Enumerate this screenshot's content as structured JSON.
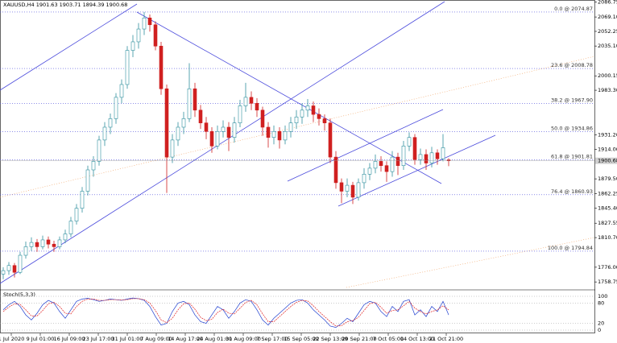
{
  "chart_data": {
    "type": "candlestick",
    "title": "XAUUSD,H4  1901.63 1903.71 1894.39 1900.68",
    "colors": {
      "up": "#2f8f9d",
      "down": "#d02020"
    },
    "ylim": [
      1752.3,
      2089.0
    ],
    "yticks": [
      2086.75,
      {
        "value": 2069.1,
        "label": "2069.10"
      },
      2052.25,
      {
        "value": 2035.1,
        "label": "2035.10"
      },
      {
        "value": 2000.15,
        "label": "2000.15"
      },
      {
        "value": 1983.3,
        "label": "1983.30"
      },
      {
        "value": 1931.2,
        "label": "1931.20"
      },
      {
        "value": 1914.0,
        "label": "1914.00"
      },
      {
        "value": 1879.5,
        "label": "1879.50"
      },
      1862.25,
      {
        "value": 1845.4,
        "label": "1845.40"
      },
      1827.55,
      {
        "value": 1810.7,
        "label": "1810.70"
      },
      {
        "value": 1776.0,
        "label": "1776.00"
      },
      1758.75
    ],
    "fib_levels": [
      {
        "value": 2074.87,
        "label": "0.0 @ 2074.87"
      },
      {
        "value": 2008.78,
        "label": "23.6 @ 2008.78"
      },
      {
        "value": 1967.9,
        "label": "38.2 @ 1967.90"
      },
      {
        "value": 1934.86,
        "label": "50.0 @ 1934.86"
      },
      {
        "value": 1901.81,
        "label": "61.8 @ 1901.81"
      },
      {
        "value": 1860.93,
        "label": "76.4 @ 1860.93"
      },
      {
        "value": 1794.84,
        "label": "100.0 @ 1794.84"
      }
    ],
    "current_price": 1900.68,
    "x_labels": [
      "1 Jul 2020",
      "9 Jul 01:00",
      "16 Jul 09:00",
      "23 Jul 17:00",
      "31 Jul 01:00",
      "7 Aug 09:00",
      "14 Aug 17:00",
      "24 Aug 01:00",
      "31 Aug 09:00",
      "7 Sep 17:00",
      "15 Sep 05:00",
      "22 Sep 13:00",
      "29 Sep 21:00",
      "7 Oct 05:00",
      "14 Oct 13:00",
      "21 Oct 21:00"
    ],
    "ohlc": [
      [
        1768,
        1776,
        1762,
        1772
      ],
      [
        1772,
        1782,
        1767,
        1778
      ],
      [
        1778,
        1781,
        1764,
        1770
      ],
      [
        1770,
        1794,
        1768,
        1790
      ],
      [
        1790,
        1806,
        1786,
        1800
      ],
      [
        1800,
        1811,
        1795,
        1805
      ],
      [
        1805,
        1809,
        1794,
        1800
      ],
      [
        1800,
        1813,
        1797,
        1808
      ],
      [
        1808,
        1812,
        1798,
        1803
      ],
      [
        1803,
        1807,
        1794,
        1800
      ],
      [
        1800,
        1812,
        1797,
        1808
      ],
      [
        1808,
        1820,
        1804,
        1815
      ],
      [
        1815,
        1835,
        1811,
        1830
      ],
      [
        1830,
        1850,
        1826,
        1845
      ],
      [
        1845,
        1870,
        1840,
        1865
      ],
      [
        1865,
        1895,
        1860,
        1890
      ],
      [
        1890,
        1906,
        1882,
        1900
      ],
      [
        1900,
        1930,
        1895,
        1925
      ],
      [
        1925,
        1946,
        1918,
        1940
      ],
      [
        1940,
        1956,
        1932,
        1950
      ],
      [
        1950,
        1980,
        1944,
        1975
      ],
      [
        1975,
        1996,
        1968,
        1990
      ],
      [
        1990,
        2035,
        1985,
        2030
      ],
      [
        2030,
        2048,
        2022,
        2040
      ],
      [
        2040,
        2062,
        2032,
        2055
      ],
      [
        2055,
        2075,
        2048,
        2068
      ],
      [
        2068,
        2072,
        2052,
        2060
      ],
      [
        2060,
        2064,
        2030,
        2035
      ],
      [
        2035,
        2040,
        1978,
        1985
      ],
      [
        1985,
        1990,
        1863,
        1905
      ],
      [
        1905,
        1932,
        1898,
        1925
      ],
      [
        1925,
        1946,
        1918,
        1940
      ],
      [
        1940,
        1958,
        1932,
        1950
      ],
      [
        1950,
        2015,
        1946,
        1985
      ],
      [
        1985,
        1992,
        1952,
        1960
      ],
      [
        1960,
        1966,
        1938,
        1945
      ],
      [
        1945,
        1952,
        1926,
        1935
      ],
      [
        1935,
        1940,
        1910,
        1918
      ],
      [
        1918,
        1942,
        1914,
        1935
      ],
      [
        1935,
        1948,
        1928,
        1940
      ],
      [
        1940,
        1946,
        1912,
        1928
      ],
      [
        1928,
        1952,
        1922,
        1945
      ],
      [
        1945,
        1972,
        1940,
        1965
      ],
      [
        1965,
        1992,
        1958,
        1975
      ],
      [
        1975,
        1982,
        1960,
        1968
      ],
      [
        1968,
        1974,
        1952,
        1960
      ],
      [
        1960,
        1964,
        1930,
        1940
      ],
      [
        1940,
        1946,
        1916,
        1928
      ],
      [
        1928,
        1942,
        1920,
        1935
      ],
      [
        1935,
        1940,
        1915,
        1925
      ],
      [
        1925,
        1942,
        1920,
        1935
      ],
      [
        1935,
        1952,
        1928,
        1945
      ],
      [
        1945,
        1960,
        1938,
        1952
      ],
      [
        1952,
        1968,
        1944,
        1960
      ],
      [
        1960,
        1973,
        1952,
        1965
      ],
      [
        1965,
        1970,
        1946,
        1955
      ],
      [
        1955,
        1962,
        1942,
        1950
      ],
      [
        1950,
        1955,
        1936,
        1945
      ],
      [
        1945,
        1950,
        1898,
        1905
      ],
      [
        1905,
        1912,
        1868,
        1875
      ],
      [
        1875,
        1880,
        1851,
        1865
      ],
      [
        1865,
        1880,
        1858,
        1872
      ],
      [
        1872,
        1876,
        1850,
        1858
      ],
      [
        1858,
        1880,
        1854,
        1875
      ],
      [
        1875,
        1892,
        1868,
        1885
      ],
      [
        1885,
        1898,
        1878,
        1892
      ],
      [
        1892,
        1908,
        1886,
        1900
      ],
      [
        1900,
        1906,
        1888,
        1895
      ],
      [
        1895,
        1900,
        1876,
        1888
      ],
      [
        1888,
        1912,
        1882,
        1905
      ],
      [
        1905,
        1910,
        1884,
        1895
      ],
      [
        1895,
        1924,
        1890,
        1918
      ],
      [
        1918,
        1934,
        1912,
        1928
      ],
      [
        1928,
        1932,
        1896,
        1902
      ],
      [
        1902,
        1915,
        1896,
        1908
      ],
      [
        1908,
        1914,
        1890,
        1898
      ],
      [
        1898,
        1917,
        1893,
        1910
      ],
      [
        1910,
        1914,
        1896,
        1903
      ],
      [
        1903,
        1932,
        1900,
        1916
      ],
      [
        1901.63,
        1903.71,
        1894.39,
        1900.68
      ]
    ],
    "indicator": {
      "type": "line",
      "name": "Stoch(5,3,3)",
      "ylim": [
        0,
        100
      ],
      "yticks": [
        100,
        80,
        20,
        0
      ],
      "series": [
        {
          "color": "#2040d0",
          "values": [
            60,
            75,
            85,
            70,
            45,
            30,
            50,
            75,
            88,
            80,
            55,
            35,
            60,
            85,
            92,
            94,
            90,
            85,
            88,
            92,
            90,
            88,
            92,
            95,
            93,
            88,
            70,
            40,
            15,
            20,
            55,
            80,
            85,
            75,
            45,
            25,
            20,
            45,
            70,
            60,
            35,
            55,
            80,
            90,
            85,
            60,
            30,
            15,
            35,
            50,
            65,
            80,
            88,
            90,
            80,
            60,
            45,
            30,
            12,
            8,
            20,
            35,
            25,
            50,
            75,
            85,
            80,
            55,
            40,
            70,
            55,
            85,
            90,
            45,
            60,
            40,
            70,
            55,
            85,
            45
          ]
        },
        {
          "color": "#e02020",
          "values": [
            55,
            68,
            78,
            76,
            60,
            42,
            42,
            58,
            78,
            82,
            70,
            50,
            48,
            70,
            85,
            92,
            92,
            88,
            88,
            90,
            90,
            89,
            90,
            93,
            93,
            90,
            80,
            58,
            30,
            22,
            35,
            60,
            78,
            80,
            62,
            38,
            28,
            32,
            52,
            62,
            50,
            48,
            65,
            82,
            88,
            75,
            48,
            25,
            25,
            40,
            55,
            70,
            82,
            88,
            86,
            72,
            55,
            40,
            25,
            12,
            13,
            25,
            28,
            38,
            58,
            78,
            82,
            68,
            50,
            58,
            60,
            72,
            85,
            65,
            55,
            48,
            55,
            60,
            72,
            60
          ]
        }
      ]
    }
  }
}
